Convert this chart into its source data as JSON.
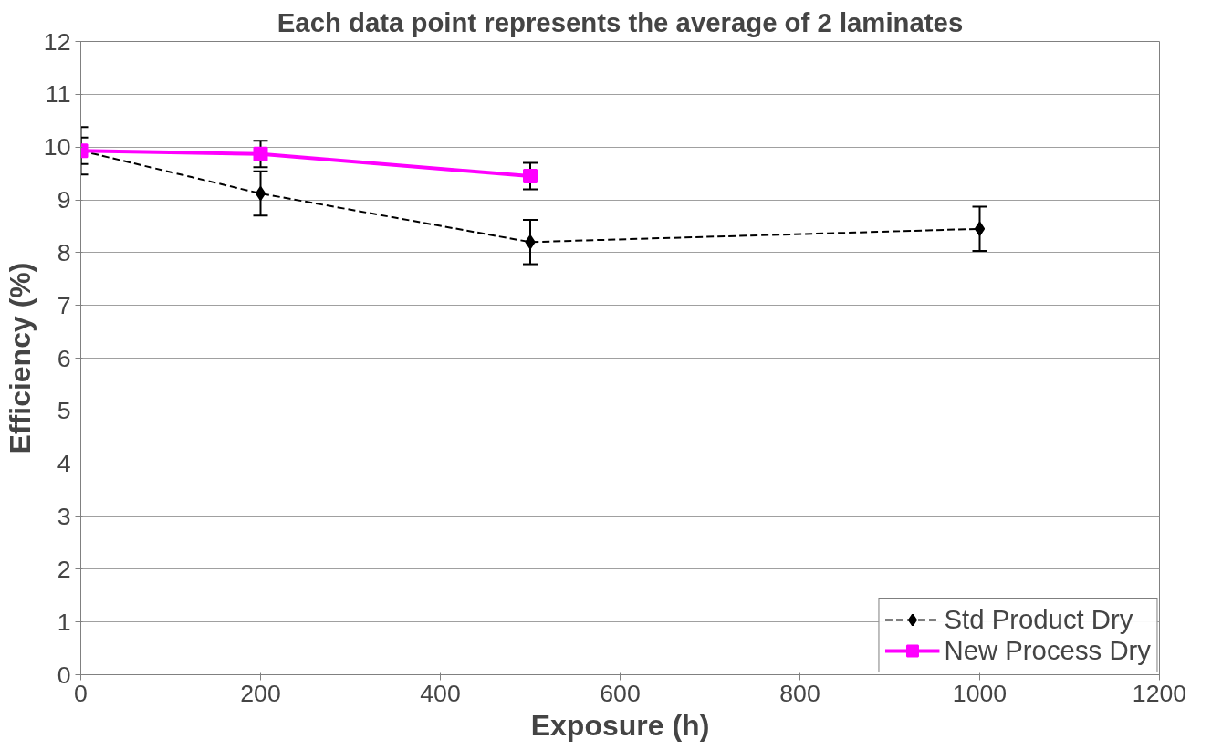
{
  "chart_data": {
    "type": "line",
    "title": "Each data point represents the average of 2 laminates",
    "xlabel": "Exposure (h)",
    "ylabel": "Efficiency (%)",
    "xlim": [
      0,
      1200
    ],
    "xticks": [
      0,
      200,
      400,
      600,
      800,
      1000,
      1200
    ],
    "ylim": [
      0,
      12
    ],
    "yticks": [
      0,
      1,
      2,
      3,
      4,
      5,
      6,
      7,
      8,
      9,
      10,
      11,
      12
    ],
    "grid": "y",
    "legend": "bottom right",
    "series": [
      {
        "name": "Std Product Dry",
        "color": "#000000",
        "marker": "diamond",
        "line_style": "dashed",
        "x": [
          0,
          200,
          500,
          1000
        ],
        "values": [
          9.93,
          9.12,
          8.2,
          8.45
        ],
        "errors": [
          0.45,
          0.42,
          0.42,
          0.42
        ]
      },
      {
        "name": "New Process Dry",
        "color": "#ff00ff",
        "marker": "square",
        "line_style": "solid",
        "x": [
          0,
          200,
          500
        ],
        "values": [
          9.93,
          9.87,
          9.45
        ],
        "errors": [
          0.25,
          0.25,
          0.25
        ]
      }
    ]
  }
}
